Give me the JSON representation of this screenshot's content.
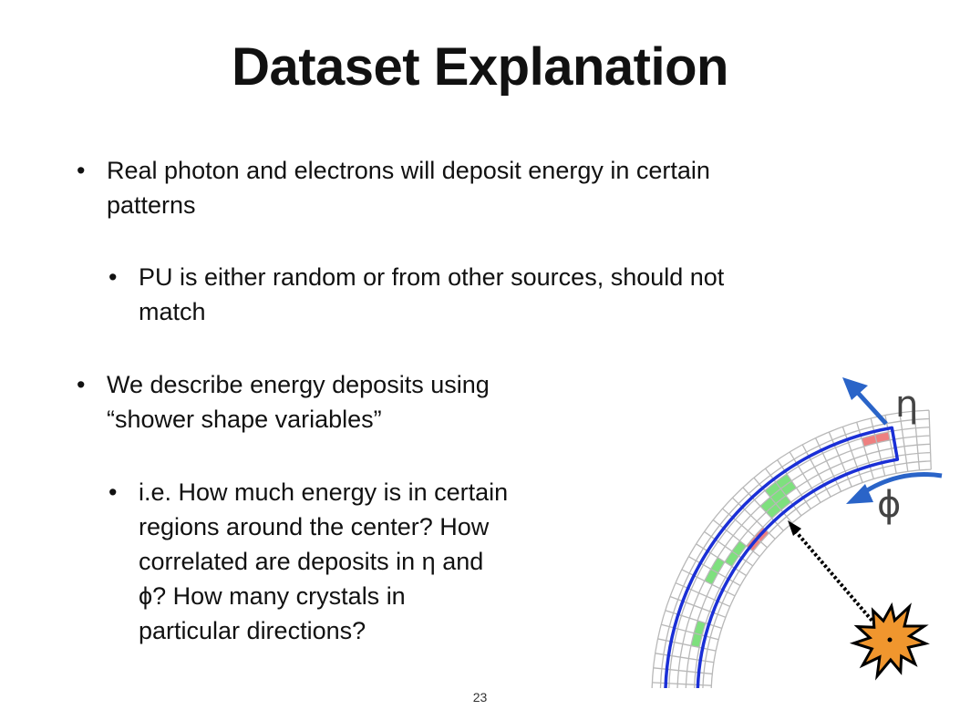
{
  "slide": {
    "title": "Dataset Explanation",
    "page_number": "23",
    "bullet_symbol": "•",
    "bullets": [
      {
        "level": 1,
        "lines": [
          "Real photon and electrons will deposit energy in certain",
          "patterns"
        ]
      },
      {
        "level": 2,
        "lines": [
          "PU is either random or from other sources, should not",
          "match"
        ]
      },
      {
        "level": 1,
        "lines": [
          "We describe energy deposits using",
          "“shower shape variables”"
        ]
      },
      {
        "level": 2,
        "lines": [
          "i.e. How much energy is in certain",
          "regions around the center? How",
          "correlated are deposits in η and",
          "ϕ? How many crystals in",
          "particular directions?"
        ]
      }
    ]
  },
  "diagram": {
    "eta_label": "η",
    "phi_label": "ϕ",
    "colors": {
      "grid": "#b8b8b8",
      "cluster_outline": "#1a2fd6",
      "arrows": "#2a64c8",
      "green_cells": "#7ee07e",
      "red_cells": "#ee8080",
      "burst_fill": "#f0962e"
    }
  }
}
